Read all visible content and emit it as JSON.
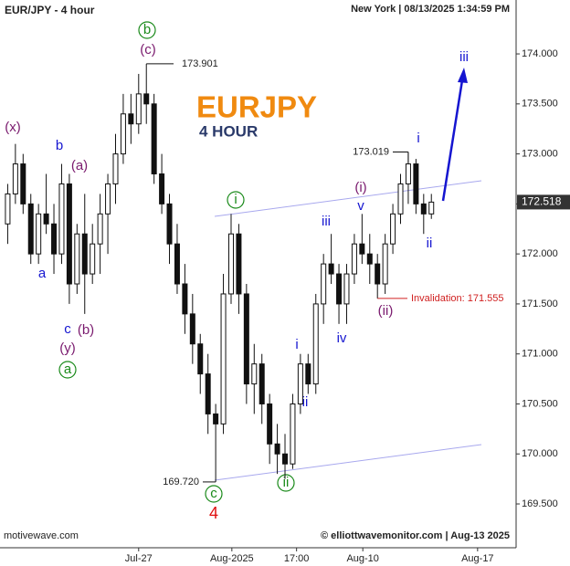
{
  "chart_data": {
    "type": "candlestick",
    "title": "EUR/JPY - 4 hour",
    "timestamp": "New York | 08/13/2025 1:34:59 PM",
    "symbol": "EURJPY",
    "timeframe": "4 HOUR",
    "source": "motivewave.com",
    "copyright": "© elliottwavemonitor.com | Aug-13 2025",
    "open": [
      172.3,
      172.6,
      172.9,
      172.5,
      172.0,
      172.4,
      172.3,
      172.0,
      172.7,
      171.7,
      172.2,
      171.8,
      172.1,
      172.4,
      172.7,
      173.0,
      173.4,
      173.3,
      173.6,
      173.5,
      172.8,
      172.5,
      172.1,
      171.7,
      171.4,
      171.1,
      170.8,
      170.4,
      170.3,
      171.6,
      172.2,
      171.6,
      170.7,
      170.9,
      170.5,
      170.1,
      170.0,
      169.9,
      170.5,
      170.9,
      170.7,
      171.5,
      171.9,
      171.8,
      171.5,
      171.8,
      172.1,
      172.0,
      171.9,
      171.7,
      172.1,
      172.4,
      172.7,
      172.9,
      172.5,
      172.4
    ],
    "high": [
      172.7,
      173.1,
      173.0,
      172.6,
      172.5,
      172.8,
      172.5,
      172.9,
      172.8,
      172.3,
      172.6,
      172.3,
      172.6,
      172.8,
      173.2,
      173.6,
      173.6,
      173.8,
      173.901,
      173.6,
      173.0,
      172.6,
      172.3,
      171.9,
      171.6,
      171.2,
      171.0,
      170.5,
      171.8,
      172.4,
      172.3,
      171.7,
      171.1,
      171.0,
      170.6,
      170.3,
      170.2,
      170.6,
      171.0,
      171.0,
      171.6,
      172.0,
      172.2,
      171.9,
      171.9,
      172.2,
      172.4,
      172.2,
      172.0,
      172.2,
      172.5,
      172.8,
      173.019,
      172.95,
      172.6,
      172.6
    ],
    "low": [
      172.1,
      172.5,
      172.4,
      171.9,
      171.9,
      172.2,
      171.8,
      171.9,
      171.5,
      171.6,
      171.4,
      171.7,
      171.8,
      172.0,
      172.5,
      172.9,
      173.1,
      173.2,
      173.3,
      172.7,
      172.4,
      171.9,
      171.6,
      171.2,
      170.9,
      170.6,
      170.2,
      169.72,
      170.2,
      171.5,
      171.4,
      170.5,
      170.4,
      170.3,
      169.9,
      169.8,
      169.75,
      169.85,
      170.4,
      170.6,
      170.6,
      171.3,
      171.7,
      171.3,
      171.3,
      171.7,
      171.9,
      171.7,
      171.555,
      171.6,
      172.0,
      172.3,
      172.5,
      172.4,
      172.2,
      172.35
    ],
    "close": [
      172.6,
      172.9,
      172.5,
      172.0,
      172.4,
      172.3,
      172.0,
      172.7,
      171.7,
      172.2,
      171.8,
      172.1,
      172.4,
      172.7,
      173.0,
      173.4,
      173.3,
      173.6,
      173.5,
      172.8,
      172.5,
      172.1,
      171.7,
      171.4,
      171.1,
      170.8,
      170.4,
      170.3,
      171.6,
      172.2,
      171.6,
      170.7,
      170.9,
      170.5,
      170.1,
      170.0,
      169.9,
      170.5,
      170.9,
      170.7,
      171.5,
      171.9,
      171.8,
      171.5,
      171.8,
      172.1,
      172.0,
      171.9,
      171.7,
      172.1,
      172.4,
      172.7,
      172.9,
      172.5,
      172.4,
      172.518
    ],
    "xlim": [
      -1,
      66
    ],
    "xticks": [
      {
        "value": 17,
        "label": "Jul-27"
      },
      {
        "value": 29.1,
        "label": "Aug-2025"
      },
      {
        "value": 37.5,
        "label": "17:00"
      },
      {
        "value": 46.1,
        "label": "Aug-10"
      },
      {
        "value": 61,
        "label": "Aug-17"
      }
    ],
    "ylim": [
      169.062,
      174.539
    ],
    "yticks": [
      {
        "value": 169.5,
        "label": "169.500"
      },
      {
        "value": 170,
        "label": "170.000"
      },
      {
        "value": 170.5,
        "label": "170.500"
      },
      {
        "value": 171,
        "label": "171.000"
      },
      {
        "value": 171.5,
        "label": "171.500"
      },
      {
        "value": 172,
        "label": "172.000"
      },
      {
        "value": 172.5,
        "label": "172.500"
      },
      {
        "value": 173,
        "label": "173.000"
      },
      {
        "value": 173.5,
        "label": "173.500"
      },
      {
        "value": 174,
        "label": "174.000"
      }
    ],
    "price_labels": [
      {
        "value": 173.901,
        "label": "173.901"
      },
      {
        "value": 169.72,
        "label": "169.720"
      },
      {
        "value": 173.019,
        "label": "173.019"
      },
      {
        "value": 171.555,
        "label": "Invalidation: 171.555"
      }
    ],
    "wave_labels": [
      "(x)",
      "b",
      "(a)",
      "a",
      "c",
      "(b)",
      "(y)",
      "a",
      "b",
      "(c)",
      "i",
      "(i)",
      "v",
      "iii",
      "iv",
      "i",
      "ii",
      "ii",
      "c",
      "4",
      "i",
      "ii",
      "(ii)",
      "iii"
    ]
  }
}
